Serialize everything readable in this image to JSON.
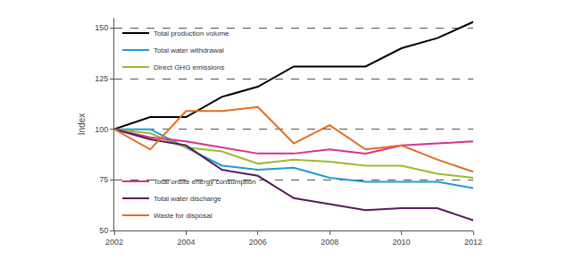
{
  "chart_data": {
    "type": "line",
    "y_label": "Index",
    "x": [
      2002,
      2003,
      2004,
      2005,
      2006,
      2007,
      2008,
      2009,
      2010,
      2011,
      2012
    ],
    "series": [
      {
        "name": "Total production volume",
        "color": "#000000",
        "values": [
          100,
          106,
          106,
          116,
          121,
          131,
          131,
          131,
          140,
          145,
          153
        ]
      },
      {
        "name": "Total water withdrawal",
        "color": "#1e9bd7",
        "values": [
          100,
          100,
          91,
          82,
          80,
          81,
          76,
          74,
          74,
          74,
          71
        ]
      },
      {
        "name": "Direct GHG emissions",
        "color": "#9bbb2a",
        "values": [
          100,
          98,
          91,
          89,
          83,
          85,
          84,
          82,
          82,
          78,
          76
        ]
      },
      {
        "name": "Total onsite energy consumption",
        "color": "#d6338a",
        "values": [
          100,
          96,
          94,
          91,
          88,
          88,
          90,
          88,
          92,
          93,
          94
        ]
      },
      {
        "name": "Total water discharge",
        "color": "#5c1a5e",
        "values": [
          100,
          95,
          92,
          80,
          77,
          66,
          63,
          60,
          61,
          61,
          55
        ]
      },
      {
        "name": "Waste for disposal",
        "color": "#e36c1f",
        "values": [
          100,
          90,
          109,
          109,
          111,
          93,
          102,
          90,
          92,
          85,
          79
        ]
      }
    ],
    "xlim": [
      2002,
      2012
    ],
    "xticks": [
      2002,
      2004,
      2006,
      2008,
      2010,
      2012
    ],
    "ylim": [
      50,
      155
    ],
    "yticks": [
      50,
      75,
      100,
      125,
      150
    ],
    "grid": true,
    "legend": "left"
  }
}
